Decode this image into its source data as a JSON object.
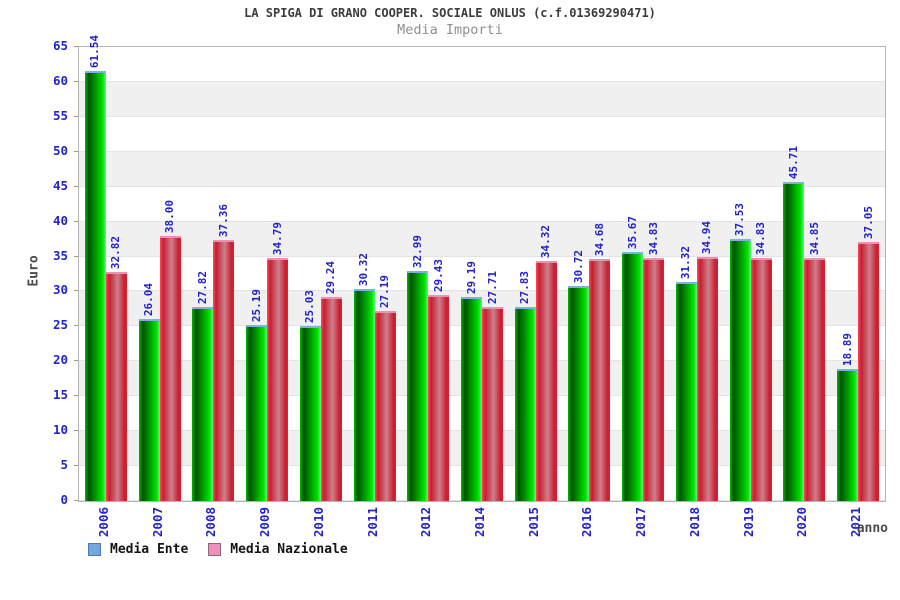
{
  "chart_data": {
    "type": "bar",
    "title": "LA SPIGA DI GRANO COOPER. SOCIALE ONLUS (c.f.01369290471)",
    "subtitle": "Media Importi",
    "xlabel": "anno",
    "ylabel": "Euro",
    "ylim": [
      0,
      65
    ],
    "ytick_step": 5,
    "ytick_labels": [
      0,
      5,
      10,
      15,
      20,
      25,
      30,
      35,
      40,
      45,
      50,
      55,
      60,
      65
    ],
    "value_decimals": 2,
    "grid": "horizontal-bands-alternating",
    "legend_position": "bottom-left",
    "categories": [
      "2006",
      "2007",
      "2008",
      "2009",
      "2010",
      "2011",
      "2012",
      "2014",
      "2015",
      "2016",
      "2017",
      "2018",
      "2019",
      "2020",
      "2021"
    ],
    "series": [
      {
        "name": "Media Ente",
        "bar_color": "green-gradient",
        "cap_color": "#7fb0e2",
        "values": [
          61.54,
          26.04,
          27.82,
          25.19,
          25.03,
          30.32,
          32.99,
          29.19,
          27.83,
          30.72,
          35.67,
          31.32,
          37.53,
          45.71,
          18.89
        ]
      },
      {
        "name": "Media Nazionale",
        "bar_color": "red-gradient",
        "cap_color": "#ee8fb4",
        "values": [
          32.82,
          38.0,
          37.36,
          34.79,
          29.24,
          27.19,
          29.43,
          27.71,
          34.32,
          34.68,
          34.83,
          34.94,
          34.83,
          34.85,
          37.05
        ]
      }
    ],
    "legend": [
      {
        "label": "Media Ente",
        "swatch_color": "#74a7dc",
        "swatch_border": "#4a7ab8"
      },
      {
        "label": "Media Nazionale",
        "swatch_color": "#ef8fbe",
        "swatch_border": "#8a6a7a"
      }
    ],
    "colors": {
      "tick_text": "#2323cb",
      "value_label_text": "#2323cb",
      "title_text": "#3c3c3c",
      "subtitle_text": "#8f8f8f",
      "axis_title_text": "#4a4a4a",
      "plot_border": "#b5b5b5",
      "band_gray": "#f0f0f0",
      "grid_line": "#e3e3e3",
      "bar_green_main": "#00c000",
      "bar_red_main": "#c51f30"
    }
  }
}
